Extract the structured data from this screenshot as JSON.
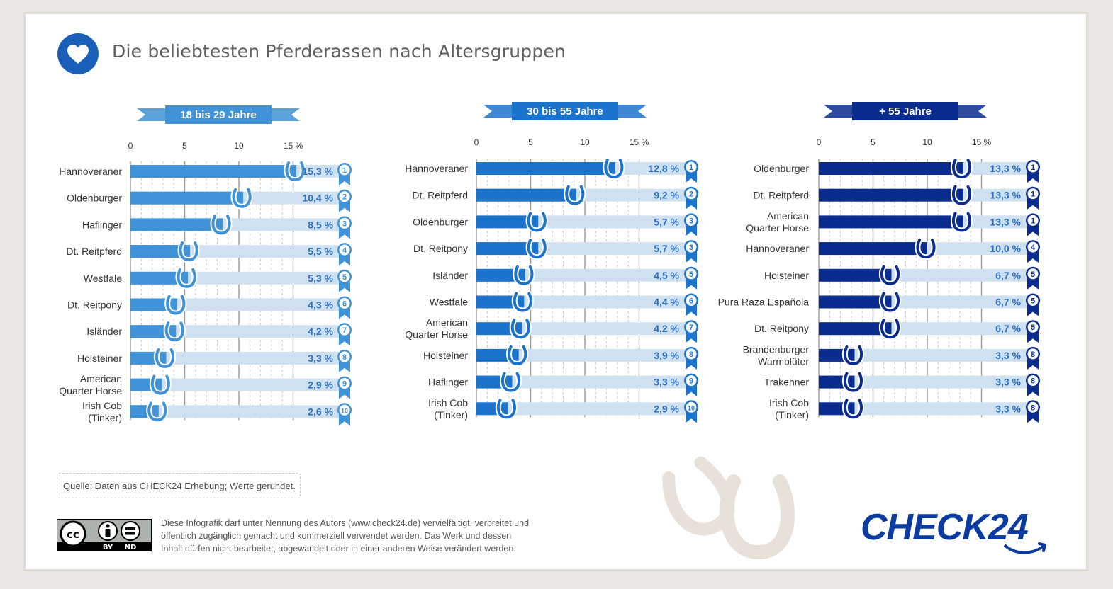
{
  "title": "Die beliebtesten Pferderassen nach Altersgruppen",
  "footer": {
    "source": "Quelle: Daten aus CHECK24 Erhebung; Werte gerundet.",
    "license_lines": [
      "Diese Infografik darf unter Nennung des Autors (www.check24.de) vervielfältigt, verbreitet und",
      "öffentlich zugänglich gemacht und kommerziell verwendet werden. Das Werk und dessen",
      "Inhalt dürfen nicht bearbeitet, abgewandelt oder in einer anderen Weise verändert werden."
    ],
    "license_badge": {
      "by": "BY",
      "nd": "ND",
      "cc": "cc"
    },
    "logo": "CHECK24"
  },
  "colors": {
    "panel1": "#3f93d6",
    "panel2": "#1c73cc",
    "panel3": "#0b2c8f",
    "track": "#cfe1f1",
    "value_text": "#2a6fc0"
  },
  "icons": [
    "heart-icon",
    "horseshoe-icon",
    "ribbon-icon",
    "cc-icon",
    "person-icon",
    "equals-icon"
  ],
  "chart_data": [
    {
      "type": "bar",
      "title": "18 bis 29 Jahre",
      "ticks": [
        "0",
        "5",
        "10",
        "15 %"
      ],
      "xlim": [
        0,
        15
      ],
      "categories": [
        "Hannoveraner",
        "Oldenburger",
        "Haflinger",
        "Dt. Reitpferd",
        "Westfale",
        "Dt. Reitpony",
        "Isländer",
        "Holsteiner",
        "American Quarter Horse",
        "Irish Cob (Tinker)"
      ],
      "values": [
        15.3,
        10.4,
        8.5,
        5.5,
        5.3,
        4.3,
        4.2,
        3.3,
        2.9,
        2.6
      ],
      "value_labels": [
        "15,3 %",
        "10,4 %",
        "8,5 %",
        "5,5 %",
        "5,3 %",
        "4,3 %",
        "4,2 %",
        "3,3 %",
        "2,9 %",
        "2,6 %"
      ],
      "ranks": [
        "1",
        "2",
        "3",
        "4",
        "5",
        "6",
        "7",
        "8",
        "9",
        "10"
      ]
    },
    {
      "type": "bar",
      "title": "30 bis 55 Jahre",
      "ticks": [
        "0",
        "5",
        "10",
        "15 %"
      ],
      "xlim": [
        0,
        15
      ],
      "categories": [
        "Hannoveraner",
        "Dt. Reitpferd",
        "Oldenburger",
        "Dt. Reitpony",
        "Isländer",
        "Westfale",
        "American Quarter Horse",
        "Holsteiner",
        "Haflinger",
        "Irish Cob (Tinker)"
      ],
      "values": [
        12.8,
        9.2,
        5.7,
        5.7,
        4.5,
        4.4,
        4.2,
        3.9,
        3.3,
        2.9
      ],
      "value_labels": [
        "12,8 %",
        "9,2 %",
        "5,7 %",
        "5,7 %",
        "4,5 %",
        "4,4 %",
        "4,2 %",
        "3,9 %",
        "3,3 %",
        "2,9 %"
      ],
      "ranks": [
        "1",
        "2",
        "3",
        "3",
        "5",
        "6",
        "7",
        "8",
        "9",
        "10"
      ]
    },
    {
      "type": "bar",
      "title": "+  55 Jahre",
      "ticks": [
        "0",
        "5",
        "10",
        "15 %"
      ],
      "xlim": [
        0,
        15
      ],
      "categories": [
        "Oldenburger",
        "Dt. Reitpferd",
        "American Quarter Horse",
        "Hannoveraner",
        "Holsteiner",
        "Pura Raza Española",
        "Dt. Reitpony",
        "Brandenburger Warmblüter",
        "Trakehner",
        "Irish Cob (Tinker)"
      ],
      "values": [
        13.3,
        13.3,
        13.3,
        10.0,
        6.7,
        6.7,
        6.7,
        3.3,
        3.3,
        3.3
      ],
      "value_labels": [
        "13,3 %",
        "13,3 %",
        "13,3 %",
        "10,0 %",
        "6,7 %",
        "6,7 %",
        "6,7 %",
        "3,3 %",
        "3,3 %",
        "3,3 %"
      ],
      "ranks": [
        "1",
        "1",
        "1",
        "4",
        "5",
        "5",
        "5",
        "8",
        "8",
        "8"
      ]
    }
  ]
}
